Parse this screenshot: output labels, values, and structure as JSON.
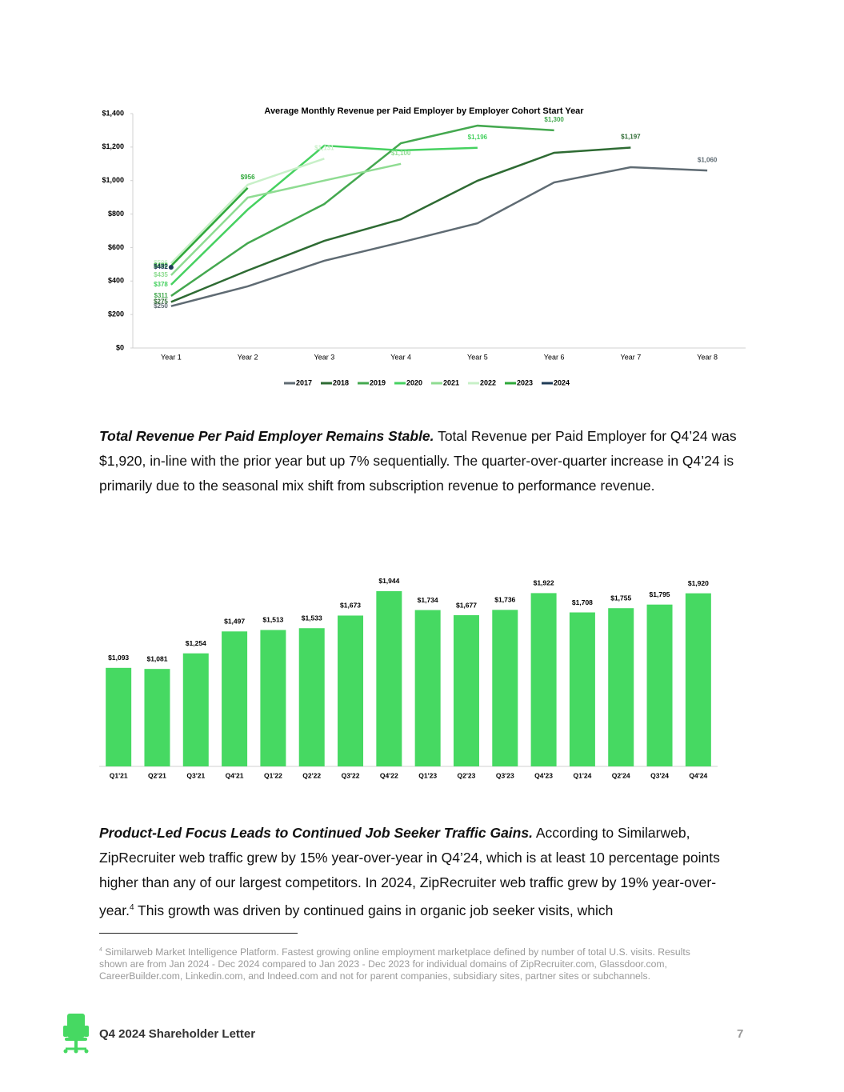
{
  "chart_data": [
    {
      "type": "line",
      "title": "Average Monthly Revenue per Paid Employer by Employer Cohort Start Year",
      "categories": [
        "Year 1",
        "Year 2",
        "Year 3",
        "Year 4",
        "Year 5",
        "Year 6",
        "Year 7",
        "Year 8"
      ],
      "ylim": [
        0,
        1400
      ],
      "yticks": [
        {
          "value": 0,
          "label": "$0"
        },
        {
          "value": 200,
          "label": "$200"
        },
        {
          "value": 400,
          "label": "$400"
        },
        {
          "value": 600,
          "label": "$600"
        },
        {
          "value": 800,
          "label": "$800"
        },
        {
          "value": 1000,
          "label": "$1,000"
        },
        {
          "value": 1200,
          "label": "$1,200"
        },
        {
          "value": 1400,
          "label": "$1,400"
        }
      ],
      "grid": false,
      "legend": "bottom",
      "series": [
        {
          "name": "2017",
          "color": "#5f6b73",
          "values": [
            250,
            368,
            521,
            631,
            745,
            989,
            1080,
            1060
          ],
          "value_labels": [
            "$250",
            null,
            null,
            null,
            null,
            null,
            null,
            "$1,060"
          ]
        },
        {
          "name": "2018",
          "color": "#2e6b33",
          "values": [
            275,
            463,
            640,
            769,
            999,
            1166,
            1197,
            null
          ],
          "value_labels": [
            "$275",
            null,
            null,
            null,
            null,
            null,
            "$1,197",
            null
          ]
        },
        {
          "name": "2019",
          "color": "#44a84f",
          "values": [
            311,
            626,
            860,
            1223,
            1328,
            1300,
            null,
            null
          ],
          "value_labels": [
            "$311",
            null,
            null,
            null,
            null,
            "$1,300",
            null,
            null
          ]
        },
        {
          "name": "2020",
          "color": "#46d160",
          "values": [
            378,
            827,
            1209,
            1180,
            1196,
            null,
            null,
            null
          ],
          "value_labels": [
            "$378",
            null,
            null,
            null,
            "$1,196",
            null,
            null,
            null
          ]
        },
        {
          "name": "2021",
          "color": "#8fdc92",
          "values": [
            435,
            898,
            1000,
            1100,
            null,
            null,
            null,
            null
          ],
          "value_labels": [
            "$435",
            null,
            null,
            "$1,100",
            null,
            null,
            null,
            null
          ]
        },
        {
          "name": "2022",
          "color": "#c8f0c8",
          "values": [
            506,
            975,
            1131,
            null,
            null,
            null,
            null,
            null
          ],
          "value_labels": [
            "$506",
            null,
            "$1,131",
            null,
            null,
            null,
            null,
            null
          ]
        },
        {
          "name": "2023",
          "color": "#2fa83a",
          "values": [
            490,
            956,
            null,
            null,
            null,
            null,
            null,
            null
          ],
          "value_labels": [
            "$490",
            "$956",
            null,
            null,
            null,
            null,
            null,
            null
          ]
        },
        {
          "name": "2024",
          "color": "#1f3b57",
          "values": [
            482,
            null,
            null,
            null,
            null,
            null,
            null,
            null
          ],
          "value_labels": [
            "$482",
            null,
            null,
            null,
            null,
            null,
            null,
            null
          ]
        }
      ]
    },
    {
      "type": "bar",
      "categories": [
        "Q1'21",
        "Q2'21",
        "Q3'21",
        "Q4'21",
        "Q1'22",
        "Q2'22",
        "Q3'22",
        "Q4'22",
        "Q1'23",
        "Q2'23",
        "Q3'23",
        "Q4'23",
        "Q1'24",
        "Q2'24",
        "Q3'24",
        "Q4'24"
      ],
      "values": [
        1093,
        1081,
        1254,
        1497,
        1513,
        1533,
        1673,
        1944,
        1734,
        1677,
        1736,
        1922,
        1708,
        1755,
        1795,
        1920
      ],
      "value_labels": [
        "$1,093",
        "$1,081",
        "$1,254",
        "$1,497",
        "$1,513",
        "$1,533",
        "$1,673",
        "$1,944",
        "$1,734",
        "$1,677",
        "$1,736",
        "$1,922",
        "$1,708",
        "$1,755",
        "$1,795",
        "$1,920"
      ],
      "color": "#46d962"
    }
  ],
  "paragraphs": [
    {
      "lead": "Total Revenue Per Paid Employer Remains Stable.",
      "text": " Total Revenue per Paid Employer for Q4’24 was $1,920, in-line with the prior year but up 7% sequentially. The quarter-over-quarter increase in Q4’24 is primarily due to the seasonal mix shift from subscription revenue to performance revenue."
    },
    {
      "lead": "Product-Led Focus Leads to Continued Job Seeker Traffic Gains.",
      "text": " According to Similarweb, ZipRecruiter web traffic grew by 15% year-over-year in Q4’24, which is at least 10 percentage points higher than any of our largest competitors. In 2024, ZipRecruiter web traffic grew by 19% year-over-year.",
      "note_ref": "4",
      "text_after": " This growth was driven by continued gains in organic job seeker visits, which"
    }
  ],
  "footnote": {
    "marker": "4",
    "text": " Similarweb Market Intelligence Platform. Fastest growing online employment marketplace defined by number of total U.S. visits. Results shown are from Jan 2024 - Dec 2024 compared to Jan 2023 - Dec 2023 for individual domains of ZipRecruiter.com, Glassdoor.com, CareerBuilder.com, Linkedin.com, and Indeed.com and not for parent companies, subsidiary sites, partner sites or subchannels."
  },
  "footer": {
    "title": "Q4 2024 Shareholder Letter",
    "page": "7"
  }
}
